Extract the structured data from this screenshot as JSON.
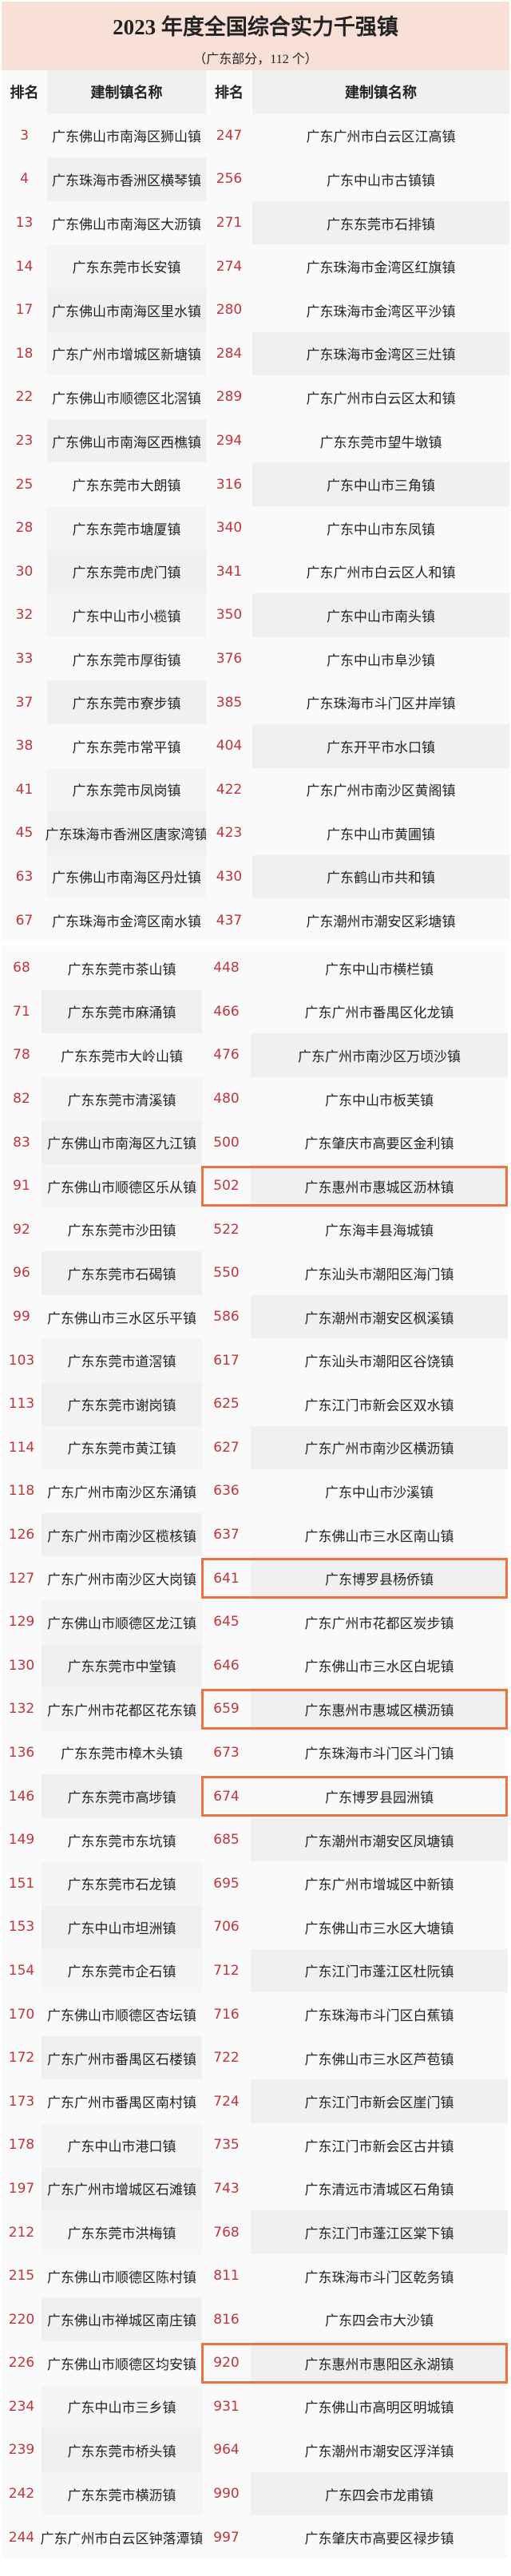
{
  "header": {
    "title": "2023 年度全国综合实力千强镇",
    "subtitle": "（广东部分，112 个）"
  },
  "columns": {
    "rank": "排名",
    "name": "建制镇名称",
    "rank2": "排名",
    "name2": "建制镇名称"
  },
  "colors": {
    "banner": "#f8e0d6",
    "rank_text": "#c0353b",
    "highlight_border": "#ea7440"
  },
  "section1": [
    {
      "l_rank": "3",
      "l_name": "广东佛山市南海区狮山镇",
      "r_rank": "247",
      "r_name": "广东广州市白云区江高镇"
    },
    {
      "l_rank": "4",
      "l_name": "广东珠海市香洲区横琴镇",
      "r_rank": "256",
      "r_name": "广东中山市古镇镇"
    },
    {
      "l_rank": "13",
      "l_name": "广东佛山市南海区大沥镇",
      "r_rank": "271",
      "r_name": "广东东莞市石排镇"
    },
    {
      "l_rank": "14",
      "l_name": "广东东莞市长安镇",
      "r_rank": "274",
      "r_name": "广东珠海市金湾区红旗镇"
    },
    {
      "l_rank": "17",
      "l_name": "广东佛山市南海区里水镇",
      "r_rank": "280",
      "r_name": "广东珠海市金湾区平沙镇"
    },
    {
      "l_rank": "18",
      "l_name": "广东广州市增城区新塘镇",
      "r_rank": "284",
      "r_name": "广东珠海市金湾区三灶镇"
    },
    {
      "l_rank": "22",
      "l_name": "广东佛山市顺德区北滘镇",
      "r_rank": "289",
      "r_name": "广东广州市白云区太和镇"
    },
    {
      "l_rank": "23",
      "l_name": "广东佛山市南海区西樵镇",
      "r_rank": "294",
      "r_name": "广东东莞市望牛墩镇"
    },
    {
      "l_rank": "25",
      "l_name": "广东东莞市大朗镇",
      "r_rank": "316",
      "r_name": "广东中山市三角镇"
    },
    {
      "l_rank": "28",
      "l_name": "广东东莞市塘厦镇",
      "r_rank": "340",
      "r_name": "广东中山市东凤镇"
    },
    {
      "l_rank": "30",
      "l_name": "广东东莞市虎门镇",
      "r_rank": "341",
      "r_name": "广东广州市白云区人和镇"
    },
    {
      "l_rank": "32",
      "l_name": "广东中山市小榄镇",
      "r_rank": "350",
      "r_name": "广东中山市南头镇"
    },
    {
      "l_rank": "33",
      "l_name": "广东东莞市厚街镇",
      "r_rank": "376",
      "r_name": "广东中山市阜沙镇"
    },
    {
      "l_rank": "37",
      "l_name": "广东东莞市寮步镇",
      "r_rank": "385",
      "r_name": "广东珠海市斗门区井岸镇"
    },
    {
      "l_rank": "38",
      "l_name": "广东东莞市常平镇",
      "r_rank": "404",
      "r_name": "广东开平市水口镇"
    },
    {
      "l_rank": "41",
      "l_name": "广东东莞市凤岗镇",
      "r_rank": "422",
      "r_name": "广东广州市南沙区黄阁镇"
    },
    {
      "l_rank": "45",
      "l_name": "广东珠海市香洲区唐家湾镇",
      "r_rank": "423",
      "r_name": "广东中山市黄圃镇"
    },
    {
      "l_rank": "63",
      "l_name": "广东佛山市南海区丹灶镇",
      "r_rank": "430",
      "r_name": "广东鹤山市共和镇"
    },
    {
      "l_rank": "67",
      "l_name": "广东珠海市金湾区南水镇",
      "r_rank": "437",
      "r_name": "广东潮州市潮安区彩塘镇"
    }
  ],
  "section2": [
    {
      "l_rank": "68",
      "l_name": "广东东莞市茶山镇",
      "r_rank": "448",
      "r_name": "广东中山市横栏镇"
    },
    {
      "l_rank": "71",
      "l_name": "广东东莞市麻涌镇",
      "r_rank": "466",
      "r_name": "广东广州市番禺区化龙镇"
    },
    {
      "l_rank": "78",
      "l_name": "广东东莞市大岭山镇",
      "r_rank": "476",
      "r_name": "广东广州市南沙区万顷沙镇"
    },
    {
      "l_rank": "82",
      "l_name": "广东东莞市清溪镇",
      "r_rank": "480",
      "r_name": "广东中山市板芙镇"
    },
    {
      "l_rank": "83",
      "l_name": "广东佛山市南海区九江镇",
      "r_rank": "500",
      "r_name": "广东肇庆市高要区金利镇"
    },
    {
      "l_rank": "91",
      "l_name": "广东佛山市顺德区乐从镇",
      "r_rank": "502",
      "r_name": "广东惠州市惠城区沥林镇",
      "highlighted": true
    },
    {
      "l_rank": "92",
      "l_name": "广东东莞市沙田镇",
      "r_rank": "522",
      "r_name": "广东海丰县海城镇"
    },
    {
      "l_rank": "96",
      "l_name": "广东东莞市石碣镇",
      "r_rank": "550",
      "r_name": "广东汕头市潮阳区海门镇"
    },
    {
      "l_rank": "99",
      "l_name": "广东佛山市三水区乐平镇",
      "r_rank": "586",
      "r_name": "广东潮州市潮安区枫溪镇"
    },
    {
      "l_rank": "103",
      "l_name": "广东东莞市道滘镇",
      "r_rank": "617",
      "r_name": "广东汕头市潮阳区谷饶镇"
    },
    {
      "l_rank": "113",
      "l_name": "广东东莞市谢岗镇",
      "r_rank": "625",
      "r_name": "广东江门市新会区双水镇"
    },
    {
      "l_rank": "114",
      "l_name": "广东东莞市黄江镇",
      "r_rank": "627",
      "r_name": "广东广州市南沙区横沥镇"
    },
    {
      "l_rank": "118",
      "l_name": "广东广州市南沙区东涌镇",
      "r_rank": "636",
      "r_name": "广东中山市沙溪镇"
    },
    {
      "l_rank": "126",
      "l_name": "广东广州市南沙区榄核镇",
      "r_rank": "637",
      "r_name": "广东佛山市三水区南山镇"
    },
    {
      "l_rank": "127",
      "l_name": "广东广州市南沙区大岗镇",
      "r_rank": "641",
      "r_name": "广东博罗县杨侨镇",
      "highlighted": true
    },
    {
      "l_rank": "129",
      "l_name": "广东佛山市顺德区龙江镇",
      "r_rank": "645",
      "r_name": "广东广州市花都区炭步镇"
    },
    {
      "l_rank": "130",
      "l_name": "广东东莞市中堂镇",
      "r_rank": "646",
      "r_name": "广东佛山市三水区白坭镇"
    },
    {
      "l_rank": "132",
      "l_name": "广东广州市花都区花东镇",
      "r_rank": "659",
      "r_name": "广东惠州市惠城区横沥镇",
      "highlighted": true
    },
    {
      "l_rank": "136",
      "l_name": "广东东莞市樟木头镇",
      "r_rank": "673",
      "r_name": "广东珠海市斗门区斗门镇"
    },
    {
      "l_rank": "146",
      "l_name": "广东东莞市高埗镇",
      "r_rank": "674",
      "r_name": "广东博罗县园洲镇",
      "highlighted": true
    },
    {
      "l_rank": "149",
      "l_name": "广东东莞市东坑镇",
      "r_rank": "685",
      "r_name": "广东潮州市潮安区凤塘镇"
    },
    {
      "l_rank": "151",
      "l_name": "广东东莞市石龙镇",
      "r_rank": "695",
      "r_name": "广东广州市增城区中新镇"
    },
    {
      "l_rank": "153",
      "l_name": "广东中山市坦洲镇",
      "r_rank": "706",
      "r_name": "广东佛山市三水区大塘镇"
    },
    {
      "l_rank": "154",
      "l_name": "广东东莞市企石镇",
      "r_rank": "712",
      "r_name": "广东江门市蓬江区杜阮镇"
    },
    {
      "l_rank": "170",
      "l_name": "广东佛山市顺德区杏坛镇",
      "r_rank": "716",
      "r_name": "广东珠海市斗门区白蕉镇"
    },
    {
      "l_rank": "172",
      "l_name": "广东广州市番禺区石楼镇",
      "r_rank": "722",
      "r_name": "广东佛山市三水区芦苞镇"
    },
    {
      "l_rank": "173",
      "l_name": "广东广州市番禺区南村镇",
      "r_rank": "724",
      "r_name": "广东江门市新会区崖门镇"
    },
    {
      "l_rank": "178",
      "l_name": "广东中山市港口镇",
      "r_rank": "735",
      "r_name": "广东江门市新会区古井镇"
    },
    {
      "l_rank": "197",
      "l_name": "广东广州市增城区石滩镇",
      "r_rank": "743",
      "r_name": "广东清远市清城区石角镇"
    },
    {
      "l_rank": "212",
      "l_name": "广东东莞市洪梅镇",
      "r_rank": "768",
      "r_name": "广东江门市蓬江区棠下镇"
    },
    {
      "l_rank": "215",
      "l_name": "广东佛山市顺德区陈村镇",
      "r_rank": "811",
      "r_name": "广东珠海市斗门区乾务镇"
    },
    {
      "l_rank": "220",
      "l_name": "广东佛山市禅城区南庄镇",
      "r_rank": "816",
      "r_name": "广东四会市大沙镇"
    },
    {
      "l_rank": "226",
      "l_name": "广东佛山市顺德区均安镇",
      "r_rank": "920",
      "r_name": "广东惠州市惠阳区永湖镇",
      "highlighted": true
    },
    {
      "l_rank": "234",
      "l_name": "广东中山市三乡镇",
      "r_rank": "931",
      "r_name": "广东佛山市高明区明城镇"
    },
    {
      "l_rank": "239",
      "l_name": "广东东莞市桥头镇",
      "r_rank": "964",
      "r_name": "广东潮州市潮安区浮洋镇"
    },
    {
      "l_rank": "242",
      "l_name": "广东东莞市横沥镇",
      "r_rank": "990",
      "r_name": "广东四会市龙甫镇"
    },
    {
      "l_rank": "244",
      "l_name": "广东广州市白云区钟落潭镇",
      "r_rank": "997",
      "r_name": "广东肇庆市高要区禄步镇"
    }
  ]
}
